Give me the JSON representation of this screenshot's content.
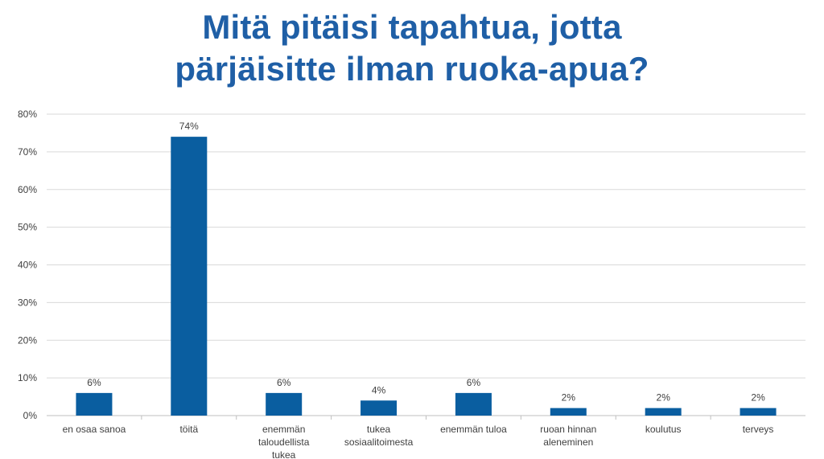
{
  "title_lines": [
    "Mitä pitäisi tapahtua, jotta",
    "pärjäisitte ilman ruoka-apua?"
  ],
  "colors": {
    "title": "#1f5fa6",
    "bar": "#0a5ea0",
    "grid": "#d9d9d9",
    "text": "#404040"
  },
  "chart_data": {
    "type": "bar",
    "title": "Mitä pitäisi tapahtua, jotta pärjäisitte ilman ruoka-apua?",
    "categories": [
      [
        "en osaa sanoa"
      ],
      [
        "töitä"
      ],
      [
        "enemmän",
        "taloudellista",
        "tukea"
      ],
      [
        "tukea",
        "sosiaalitoimesta"
      ],
      [
        "enemmän tuloa"
      ],
      [
        "ruoan hinnan",
        "aleneminen"
      ],
      [
        "koulutus"
      ],
      [
        "terveys"
      ]
    ],
    "values": [
      6,
      74,
      6,
      4,
      6,
      2,
      2,
      2
    ],
    "data_labels": [
      "6%",
      "74%",
      "6%",
      "4%",
      "6%",
      "2%",
      "2%",
      "2%"
    ],
    "y_ticks": [
      "0%",
      "10%",
      "20%",
      "30%",
      "40%",
      "50%",
      "60%",
      "70%",
      "80%"
    ],
    "ylim": [
      0,
      80
    ],
    "grid": true,
    "legend": "none"
  }
}
